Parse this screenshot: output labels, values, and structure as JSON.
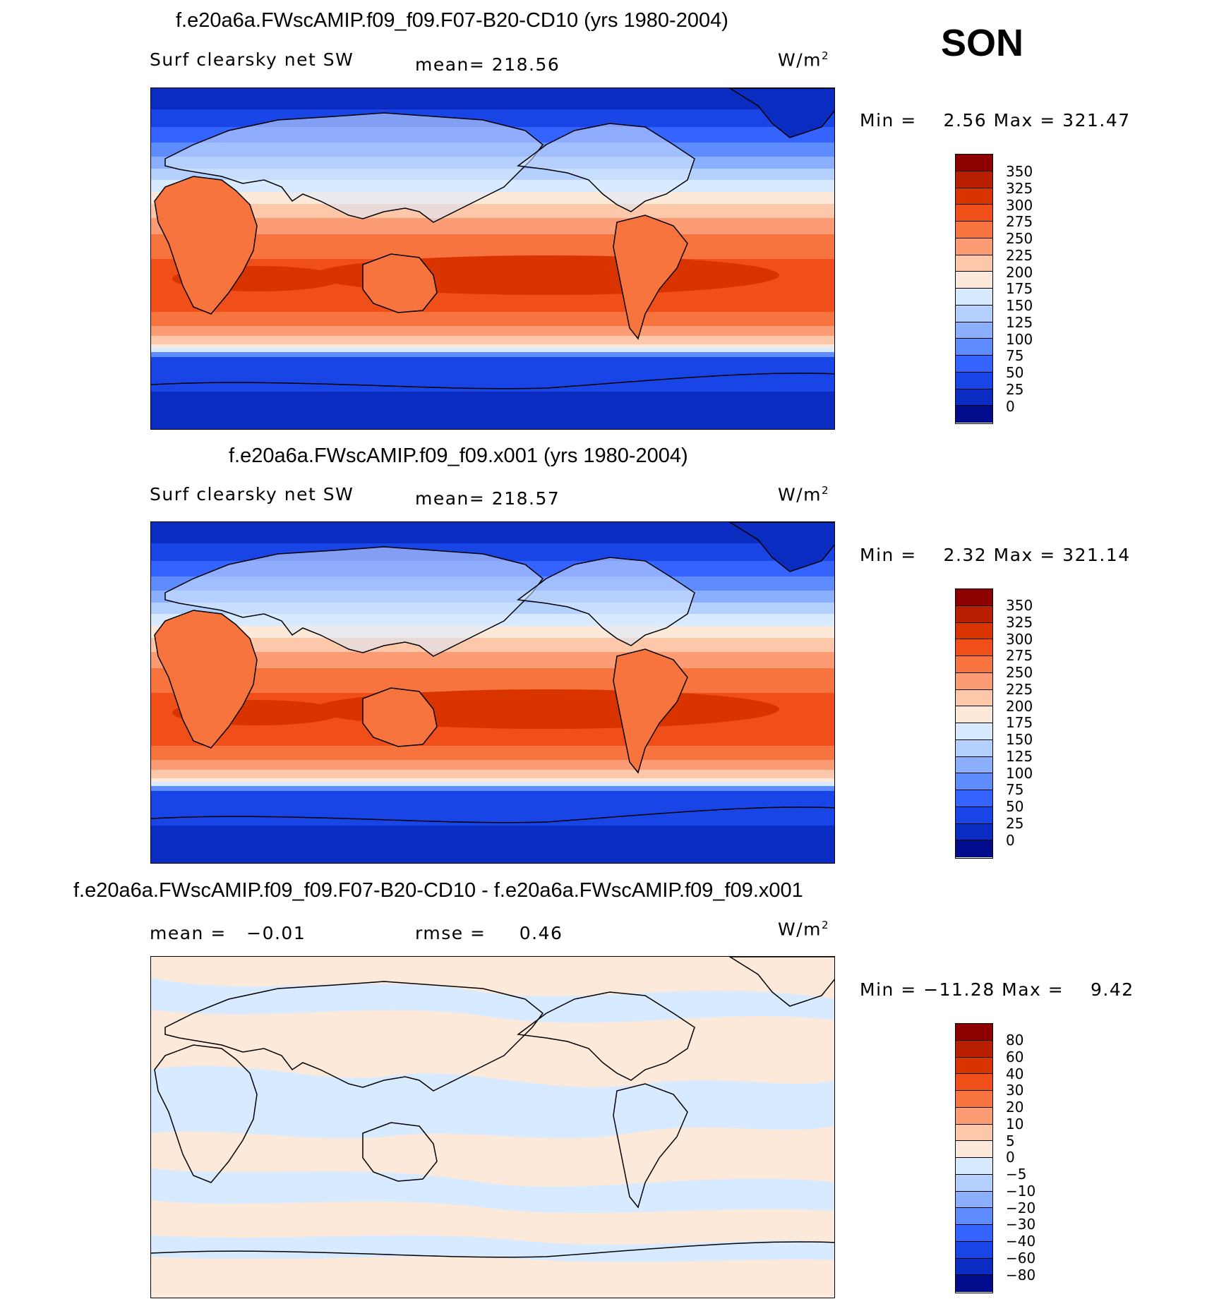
{
  "season": "SON",
  "panels": [
    {
      "title": "f.e20a6a.FWscAMIP.f09_f09.F07-B20-CD10 (yrs 1980-2004)",
      "left_label": "Surf clearsky net SW",
      "center_label": "mean= 218.56",
      "units_base": "W/m",
      "units_exp": "2",
      "minmax": "Min =    2.56 Max = 321.47",
      "colorbar_labels": [
        "350",
        "325",
        "300",
        "275",
        "250",
        "225",
        "200",
        "175",
        "150",
        "125",
        "100",
        "75",
        "50",
        "25",
        "0"
      ],
      "colorbar_colors": [
        "#8c0000",
        "#b81f00",
        "#d93300",
        "#f04f1a",
        "#f7743f",
        "#fb9c74",
        "#fdc8a9",
        "#fde9da",
        "#d8eaff",
        "#b4d0ff",
        "#8aafff",
        "#5e8cff",
        "#3563ff",
        "#1a45e6",
        "#0a2cc0",
        "#000c8c"
      ]
    },
    {
      "title": "f.e20a6a.FWscAMIP.f09_f09.x001 (yrs 1980-2004)",
      "left_label": "Surf clearsky net SW",
      "center_label": "mean= 218.57",
      "units_base": "W/m",
      "units_exp": "2",
      "minmax": "Min =    2.32 Max = 321.14",
      "colorbar_labels": [
        "350",
        "325",
        "300",
        "275",
        "250",
        "225",
        "200",
        "175",
        "150",
        "125",
        "100",
        "75",
        "50",
        "25",
        "0"
      ],
      "colorbar_colors": [
        "#8c0000",
        "#b81f00",
        "#d93300",
        "#f04f1a",
        "#f7743f",
        "#fb9c74",
        "#fdc8a9",
        "#fde9da",
        "#d8eaff",
        "#b4d0ff",
        "#8aafff",
        "#5e8cff",
        "#3563ff",
        "#1a45e6",
        "#0a2cc0",
        "#000c8c"
      ]
    },
    {
      "title": "f.e20a6a.FWscAMIP.f09_f09.F07-B20-CD10 - f.e20a6a.FWscAMIP.f09_f09.x001",
      "left_label": "mean =   −0.01",
      "center_label": "rmse =     0.46",
      "units_base": "W/m",
      "units_exp": "2",
      "minmax": "Min = −11.28 Max =    9.42",
      "colorbar_labels": [
        "80",
        "60",
        "40",
        "30",
        "20",
        "10",
        "5",
        "0",
        "−5",
        "−10",
        "−20",
        "−30",
        "−40",
        "−60",
        "−80"
      ],
      "colorbar_colors": [
        "#8c0000",
        "#b81f00",
        "#d93300",
        "#f04f1a",
        "#f7743f",
        "#fb9c74",
        "#fdc8a9",
        "#fde9da",
        "#d8eaff",
        "#b4d0ff",
        "#8aafff",
        "#5e8cff",
        "#3563ff",
        "#1a45e6",
        "#0a2cc0",
        "#000c8c"
      ]
    }
  ]
}
